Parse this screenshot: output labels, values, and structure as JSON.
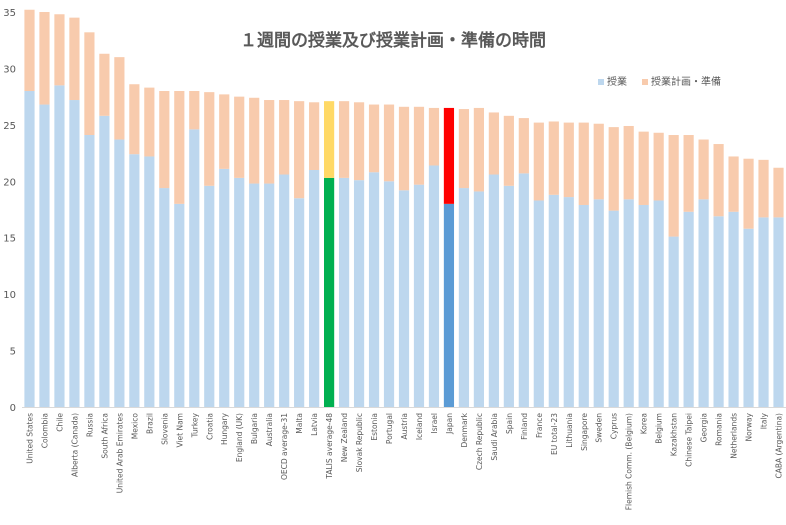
{
  "chart_data": {
    "type": "bar",
    "stacked": true,
    "title": "１週間の授業及び授業計画・準備の時間",
    "xlabel": "",
    "ylabel": "",
    "ylim": [
      0,
      35
    ],
    "yticks": [
      0,
      5,
      10,
      15,
      20,
      25,
      30,
      35
    ],
    "grid": false,
    "legend_position": "top-right",
    "categories": [
      "United States",
      "Colombia",
      "Chile",
      "Alberta (Canada)",
      "Russia",
      "South Africa",
      "United Arab Emirates",
      "Mexico",
      "Brazil",
      "Slovenia",
      "Viet Nam",
      "Turkey",
      "Croatia",
      "Hungary",
      "England (UK)",
      "Bulgaria",
      "Australia",
      "OECD average-31",
      "Malta",
      "Latvia",
      "TALIS average-48",
      "New Zealand",
      "Slovak Republic",
      "Estonia",
      "Portugal",
      "Austria",
      "Iceland",
      "Israel",
      "Japan",
      "Denmark",
      "Czech Republic",
      "Saudi Arabia",
      "Spain",
      "Finland",
      "France",
      "EU total-23",
      "Lithuania",
      "Singapore",
      "Sweden",
      "Cyprus",
      "Flemish Comm. (Belgium)",
      "Korea",
      "Belgium",
      "Kazakhstan",
      "Chinese Taipei",
      "Georgia",
      "Romania",
      "Netherlands",
      "Norway",
      "Italy",
      "CABA (Argentina)"
    ],
    "series": [
      {
        "name": "授業",
        "color": "#bdd7ee",
        "values": [
          28.0,
          26.8,
          28.5,
          27.2,
          24.1,
          25.8,
          23.7,
          22.4,
          22.2,
          19.4,
          18.0,
          24.6,
          19.6,
          21.1,
          20.3,
          19.8,
          19.8,
          20.6,
          18.5,
          21.0,
          20.3,
          20.3,
          20.1,
          20.8,
          20.0,
          19.2,
          19.7,
          21.4,
          18.0,
          19.4,
          19.1,
          20.6,
          19.6,
          20.7,
          18.3,
          18.8,
          18.6,
          17.9,
          18.4,
          17.4,
          18.4,
          17.9,
          18.3,
          15.1,
          17.3,
          18.4,
          16.9,
          17.3,
          15.8,
          16.8,
          16.8
        ]
      },
      {
        "name": "授業計画・準備",
        "color": "#f8cbad",
        "values": [
          7.2,
          8.2,
          6.3,
          7.3,
          9.1,
          5.5,
          7.3,
          6.2,
          6.1,
          8.6,
          10.0,
          3.4,
          8.3,
          6.6,
          7.2,
          7.6,
          7.4,
          6.6,
          8.6,
          6.0,
          6.8,
          6.8,
          6.9,
          6.0,
          6.8,
          7.4,
          6.9,
          5.1,
          8.5,
          7.0,
          7.4,
          5.5,
          6.2,
          4.9,
          6.9,
          6.5,
          6.6,
          7.3,
          6.7,
          7.4,
          6.5,
          6.5,
          6.0,
          9.0,
          6.8,
          5.3,
          6.4,
          4.9,
          6.2,
          5.1,
          4.4
        ]
      }
    ]
  }
}
